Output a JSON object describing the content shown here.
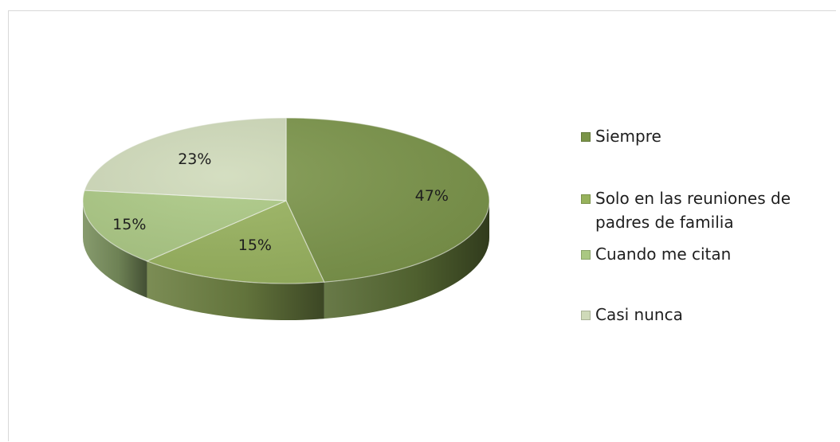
{
  "chart_data": {
    "type": "pie",
    "categories": [
      "Siempre",
      "Solo en las reuniones de padres de familia",
      "Cuando me citan",
      "Casi nunca"
    ],
    "legend_labels": [
      "Siempre",
      "Solo en las reuniones de\npadres de familia",
      "Cuando me citan",
      "Casi nunca"
    ],
    "values": [
      47,
      15,
      15,
      23
    ],
    "data_labels": [
      "47%",
      "15%",
      "15%",
      "23%"
    ],
    "colors": [
      "#7a9448",
      "#97b25c",
      "#aac882",
      "#cfdab9"
    ],
    "legend_placement": "right",
    "style": "3d"
  }
}
